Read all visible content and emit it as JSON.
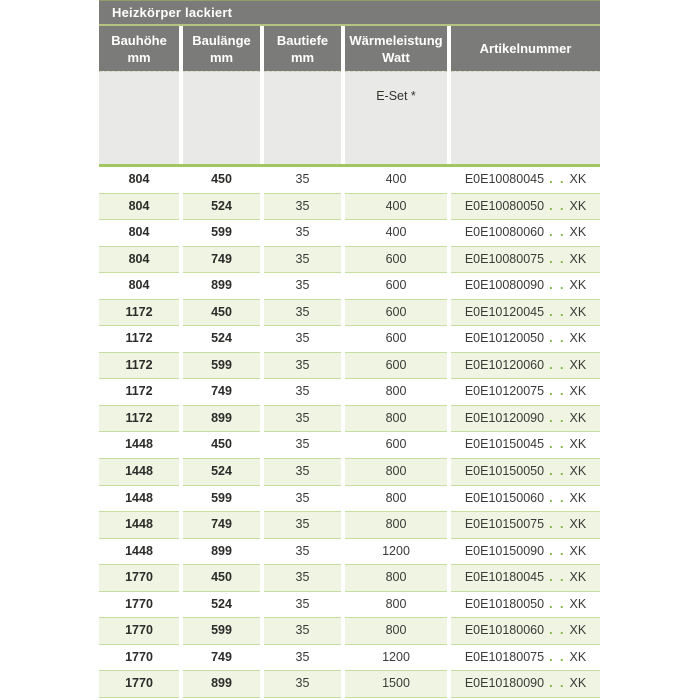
{
  "table": {
    "title": "Heizkörper lackiert",
    "columns": [
      {
        "line1": "Bauhöhe",
        "line2": "mm"
      },
      {
        "line1": "Baulänge",
        "line2": "mm"
      },
      {
        "line1": "Bautiefe",
        "line2": "mm"
      },
      {
        "line1": "Wärmeleistung",
        "line2": "Watt"
      },
      {
        "line1": "Artikelnummer",
        "line2": ""
      }
    ],
    "subheader": {
      "eset_label": "E-Set *"
    },
    "art_dots": ". .",
    "art_suffix": "XK",
    "rows": [
      {
        "bauhoehe": "804",
        "baulaenge": "450",
        "bautiefe": "35",
        "watt": "400",
        "artikel": "E0E10080045"
      },
      {
        "bauhoehe": "804",
        "baulaenge": "524",
        "bautiefe": "35",
        "watt": "400",
        "artikel": "E0E10080050"
      },
      {
        "bauhoehe": "804",
        "baulaenge": "599",
        "bautiefe": "35",
        "watt": "400",
        "artikel": "E0E10080060"
      },
      {
        "bauhoehe": "804",
        "baulaenge": "749",
        "bautiefe": "35",
        "watt": "600",
        "artikel": "E0E10080075"
      },
      {
        "bauhoehe": "804",
        "baulaenge": "899",
        "bautiefe": "35",
        "watt": "600",
        "artikel": "E0E10080090"
      },
      {
        "bauhoehe": "1172",
        "baulaenge": "450",
        "bautiefe": "35",
        "watt": "600",
        "artikel": "E0E10120045"
      },
      {
        "bauhoehe": "1172",
        "baulaenge": "524",
        "bautiefe": "35",
        "watt": "600",
        "artikel": "E0E10120050"
      },
      {
        "bauhoehe": "1172",
        "baulaenge": "599",
        "bautiefe": "35",
        "watt": "600",
        "artikel": "E0E10120060"
      },
      {
        "bauhoehe": "1172",
        "baulaenge": "749",
        "bautiefe": "35",
        "watt": "800",
        "artikel": "E0E10120075"
      },
      {
        "bauhoehe": "1172",
        "baulaenge": "899",
        "bautiefe": "35",
        "watt": "800",
        "artikel": "E0E10120090"
      },
      {
        "bauhoehe": "1448",
        "baulaenge": "450",
        "bautiefe": "35",
        "watt": "600",
        "artikel": "E0E10150045"
      },
      {
        "bauhoehe": "1448",
        "baulaenge": "524",
        "bautiefe": "35",
        "watt": "800",
        "artikel": "E0E10150050"
      },
      {
        "bauhoehe": "1448",
        "baulaenge": "599",
        "bautiefe": "35",
        "watt": "800",
        "artikel": "E0E10150060"
      },
      {
        "bauhoehe": "1448",
        "baulaenge": "749",
        "bautiefe": "35",
        "watt": "800",
        "artikel": "E0E10150075"
      },
      {
        "bauhoehe": "1448",
        "baulaenge": "899",
        "bautiefe": "35",
        "watt": "1200",
        "artikel": "E0E10150090"
      },
      {
        "bauhoehe": "1770",
        "baulaenge": "450",
        "bautiefe": "35",
        "watt": "800",
        "artikel": "E0E10180045"
      },
      {
        "bauhoehe": "1770",
        "baulaenge": "524",
        "bautiefe": "35",
        "watt": "800",
        "artikel": "E0E10180050"
      },
      {
        "bauhoehe": "1770",
        "baulaenge": "599",
        "bautiefe": "35",
        "watt": "800",
        "artikel": "E0E10180060"
      },
      {
        "bauhoehe": "1770",
        "baulaenge": "749",
        "bautiefe": "35",
        "watt": "1200",
        "artikel": "E0E10180075"
      },
      {
        "bauhoehe": "1770",
        "baulaenge": "899",
        "bautiefe": "35",
        "watt": "1500",
        "artikel": "E0E10180090"
      }
    ],
    "colors": {
      "header_gray": "#7b7b79",
      "top_border": "#8f9e6b",
      "title_underline": "#b4c47e",
      "subheader_bg": "#e9e9e7",
      "dashed_line": "#cfd6bb",
      "thick_green": "#9fc75f",
      "row_separator": "#c6dda0",
      "row_alt_green": "#f0f4e2",
      "dot_green": "#76b43a"
    }
  }
}
